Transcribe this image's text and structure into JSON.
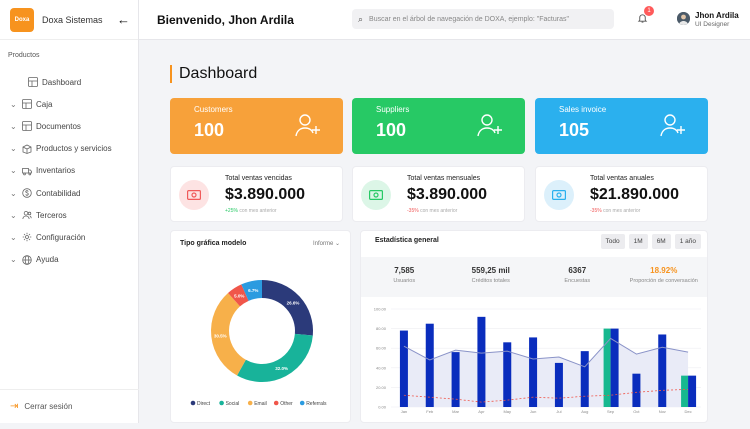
{
  "app": {
    "logo_mark": "Doxa",
    "logo_text": "Doxa Sistemas"
  },
  "topbar": {
    "welcome": "Bienvenido, Jhon Ardila",
    "search_placeholder": "Buscar en el árbol de navegación de DOXA, ejemplo: \"Facturas\"",
    "notifications_count": "1",
    "user_name": "Jhon Ardila",
    "user_role": "UI Designer"
  },
  "sidebar": {
    "section_label": "Productos",
    "items": [
      {
        "label": "Dashboard",
        "icon": "grid-icon"
      },
      {
        "label": "Caja",
        "icon": "grid-icon"
      },
      {
        "label": "Documentos",
        "icon": "grid-icon"
      },
      {
        "label": "Productos y servicios",
        "icon": "box-icon"
      },
      {
        "label": "Inventarios",
        "icon": "truck-icon"
      },
      {
        "label": "Contabilidad",
        "icon": "dollar-circle-icon"
      },
      {
        "label": "Terceros",
        "icon": "users-icon"
      },
      {
        "label": "Configuración",
        "icon": "gear-icon"
      },
      {
        "label": "Ayuda",
        "icon": "globe-icon"
      }
    ],
    "logout_label": "Cerrar sesión"
  },
  "main": {
    "title": "Dashboard",
    "stat_cards": [
      {
        "label": "Customers",
        "value": "100",
        "color": "#f7a13a"
      },
      {
        "label": "Suppliers",
        "value": "100",
        "color": "#27c965"
      },
      {
        "label": "Sales invoice",
        "value": "105",
        "color": "#2bb0ee"
      }
    ],
    "money_cards": [
      {
        "label": "Total ventas vencidas",
        "amount": "$3.890.000",
        "delta": "+25%",
        "delta_text": "con mes anterior",
        "delta_color": "#27c965",
        "icon_bg": "#fde3e3",
        "icon_color": "#f05a5a"
      },
      {
        "label": "Total ventas mensuales",
        "amount": "$3.890.000",
        "delta": "-35%",
        "delta_text": "con mes anterior",
        "delta_color": "#f05a5a",
        "icon_bg": "#dcf6e7",
        "icon_color": "#27c965"
      },
      {
        "label": "Total ventas anuales",
        "amount": "$21.890.000",
        "delta": "-35%",
        "delta_text": "con mes anterior",
        "delta_color": "#f05a5a",
        "icon_bg": "#dcf0fb",
        "icon_color": "#2bb0ee"
      }
    ],
    "donut_panel": {
      "title": "Tipo gráfica modelo",
      "dropdown": "Informe"
    },
    "stats_panel": {
      "title": "Estadística general",
      "range_buttons": [
        "Todo",
        "1M",
        "6M",
        "1 año"
      ],
      "kpis": [
        {
          "value": "7,585",
          "label": "Usuarios"
        },
        {
          "value": "559,25 mil",
          "label": "Créditos totales"
        },
        {
          "value": "6367",
          "label": "Encuestas"
        },
        {
          "value": "18.92%",
          "label": "Proporción de conversación"
        }
      ]
    }
  },
  "chart_data": [
    {
      "type": "pie",
      "variant": "donut",
      "labels": [
        "Direct",
        "Social",
        "Email",
        "Other",
        "Referrals"
      ],
      "values": [
        26.6,
        32.0,
        30.5,
        5.0,
        6.7
      ],
      "value_labels": [
        "26.6%",
        "32.0%",
        "30.5%",
        "5.0%",
        "6.7%"
      ],
      "colors": [
        "#2b3a7a",
        "#18b39a",
        "#f7b04a",
        "#f0564a",
        "#2b9be0"
      ],
      "legend": "bottom"
    },
    {
      "type": "bar",
      "categories": [
        "Jan",
        "Feb",
        "Mar",
        "Apr",
        "May",
        "Jun",
        "Jul",
        "Aug",
        "Sep",
        "Oct",
        "Nov",
        "Dec"
      ],
      "series": [
        {
          "name": "",
          "values": [
            0,
            0,
            0,
            0,
            0,
            0,
            0,
            0,
            0,
            80,
            0,
            0
          ],
          "color": "#0a2dbd"
        },
        {
          "name": "",
          "values": [
            0,
            0,
            0,
            0,
            0,
            0,
            0,
            0,
            0,
            0,
            0,
            0
          ],
          "color": "#17b88f"
        }
      ],
      "bars_a": [
        78,
        85,
        56,
        92,
        66,
        71,
        45,
        57,
        80,
        34,
        74,
        32
      ],
      "bars_b": [
        0,
        0,
        0,
        0,
        0,
        0,
        0,
        0,
        80,
        0,
        0,
        32
      ],
      "line": [
        62,
        48,
        58,
        55,
        57,
        49,
        51,
        41,
        70,
        54,
        61,
        56
      ],
      "dashed": [
        12,
        10,
        8,
        5,
        7,
        10,
        9,
        11,
        12,
        15,
        17,
        18
      ],
      "ylim": [
        0,
        100
      ],
      "yticks": [
        "0.00",
        "20.00",
        "40.00",
        "60.00",
        "80.00",
        "100.00"
      ],
      "grid": true
    }
  ]
}
